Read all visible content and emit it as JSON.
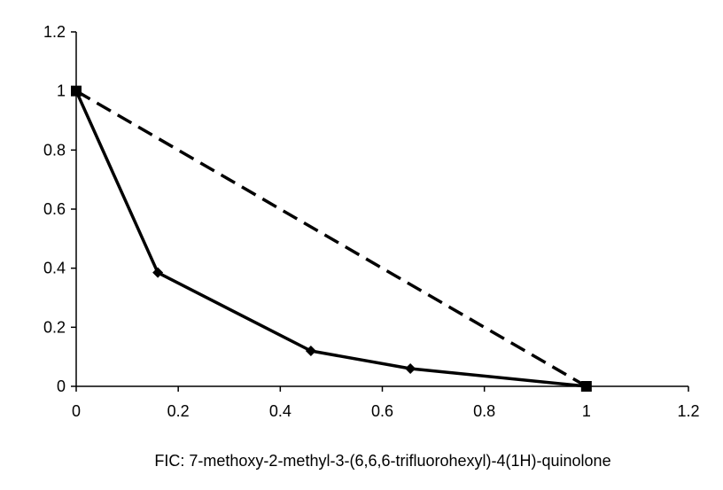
{
  "chart_data": {
    "type": "line",
    "title": "",
    "xlabel": "FIC:  7-methoxy-2-methyl-3-(6,6,6-trifluorohexyl)-4(1H)-quinolone",
    "ylabel": "",
    "xlim": [
      0,
      1.2
    ],
    "ylim": [
      0,
      1.2
    ],
    "xticks": [
      "0",
      "0.2",
      "0.4",
      "0.6",
      "0.8",
      "1",
      "1.2"
    ],
    "yticks": [
      "0",
      "0.2",
      "0.4",
      "0.6",
      "0.8",
      "1",
      "1.2"
    ],
    "grid": false,
    "legend": "none",
    "series": [
      {
        "style": "solid",
        "marker": "diamond",
        "color": "#000000",
        "points": [
          {
            "x": 0,
            "y": 1
          },
          {
            "x": 0.16,
            "y": 0.385
          },
          {
            "x": 0.46,
            "y": 0.12
          },
          {
            "x": 0.655,
            "y": 0.06
          },
          {
            "x": 1,
            "y": 0
          }
        ]
      },
      {
        "style": "dashed",
        "marker": "square",
        "color": "#000000",
        "points": [
          {
            "x": 0,
            "y": 1
          },
          {
            "x": 1,
            "y": 0
          }
        ]
      }
    ]
  }
}
